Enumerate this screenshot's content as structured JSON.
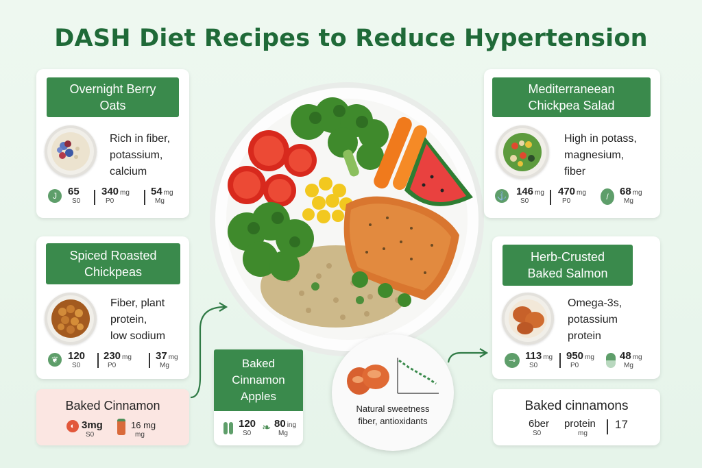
{
  "title": "DASH Diet Recipes to Reduce Hypertension",
  "cards": {
    "oats": {
      "name": "Overnight Berry\nOats",
      "desc": "Rich in fiber,\npotassium,\ncalcium",
      "stats": [
        {
          "num": "65",
          "unit": "",
          "sub": "S0"
        },
        {
          "num": "340",
          "unit": "mg",
          "sub": "P0"
        },
        {
          "num": "54",
          "unit": "mg",
          "sub": "Mg"
        }
      ]
    },
    "chickpeas": {
      "name": "Spiced Roasted\nChickpeas",
      "desc": "Fiber, plant\nprotein,\nlow sodium",
      "stats": [
        {
          "num": "120",
          "unit": "",
          "sub": "S0"
        },
        {
          "num": "230",
          "unit": "mg",
          "sub": "P0"
        },
        {
          "num": "37",
          "unit": "mg",
          "sub": "Mg"
        }
      ]
    },
    "salad": {
      "name": "Mediterraneean\nChickpea Salad",
      "desc": "High in potass,\nmagnesium,\nfiber",
      "stats": [
        {
          "num": "146",
          "unit": "mg",
          "sub": "S0"
        },
        {
          "num": "470",
          "unit": "mg",
          "sub": "P0"
        },
        {
          "num": "68",
          "unit": "mg",
          "sub": "Mg"
        }
      ]
    },
    "salmon": {
      "name": "Herb-Crusted\nBaked Salmon",
      "desc": "Omega-3s,\npotassium\nprotein",
      "stats": [
        {
          "num": "113",
          "unit": "mg",
          "sub": "S0"
        },
        {
          "num": "950",
          "unit": "mg",
          "sub": "P0"
        },
        {
          "num": "48",
          "unit": "mg",
          "sub": "Mg"
        }
      ]
    },
    "apples": {
      "name": "Baked\nCinnamon\nApples",
      "stats": [
        {
          "num": "120",
          "unit": "",
          "sub": "S0"
        },
        {
          "num": "80",
          "unit": "ing",
          "sub": "Mg"
        }
      ]
    },
    "pink_cinnamon": {
      "name": "Baked Cinnamon",
      "stats": [
        {
          "num": "3mg",
          "unit": "",
          "sub": "S0"
        },
        {
          "num": "16 mg",
          "unit": "",
          "sub": "mg"
        }
      ]
    },
    "cinnamons": {
      "name": "Baked cinnamons",
      "stats": [
        {
          "num": "6ber",
          "sub": "S0"
        },
        {
          "num": "protein",
          "sub": "mg"
        },
        {
          "num": "17",
          "sub": ""
        }
      ]
    }
  },
  "small_plate": {
    "text": "Natural sweetness\nfiber, antioxidants"
  },
  "colors": {
    "title": "#1f6a38",
    "banner": "#3a8a4c",
    "pink_card": "#fbe6e2",
    "background": "#e6f4ea"
  }
}
